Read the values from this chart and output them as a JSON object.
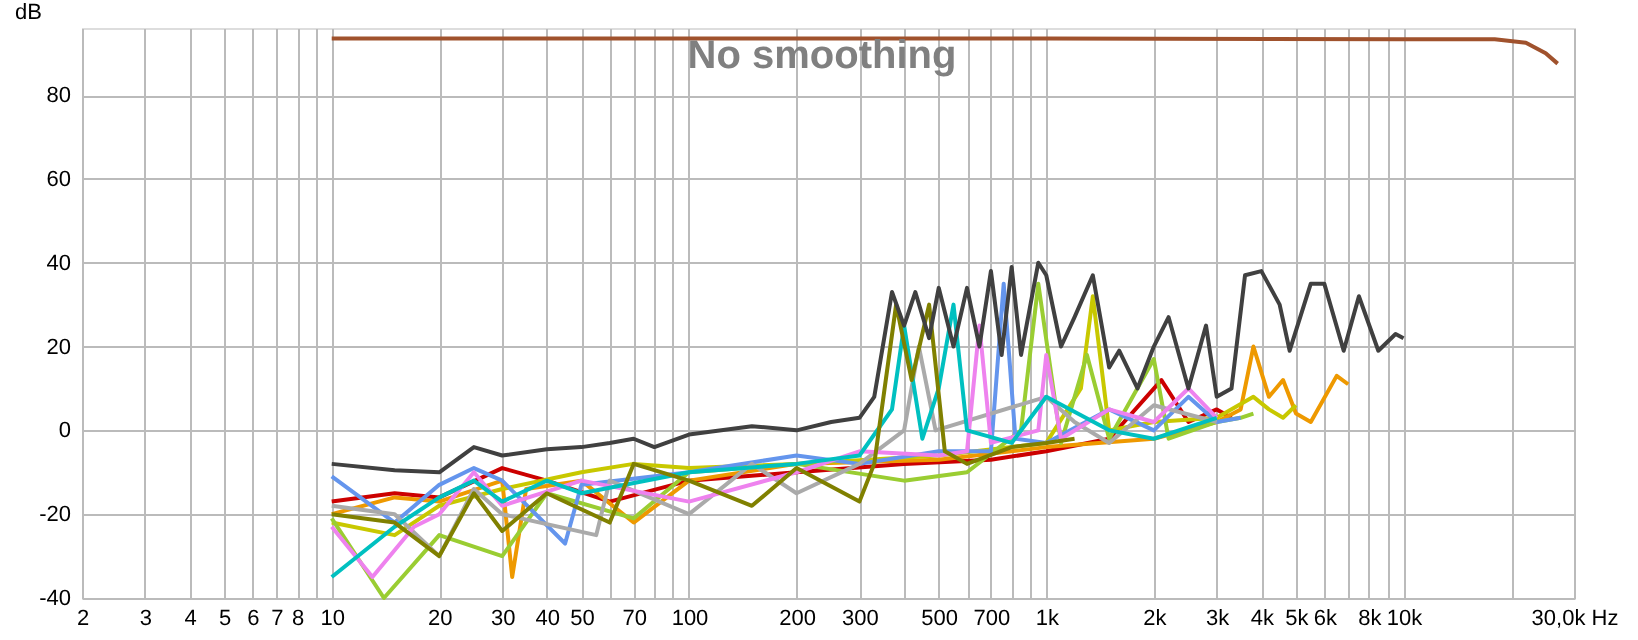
{
  "chart_data": {
    "type": "line",
    "ylabel": "dB",
    "annotations": [
      "No smoothing"
    ],
    "xlim": [
      2,
      30000
    ],
    "ylim": [
      -40,
      96
    ],
    "log": "x",
    "grid": true,
    "line_style": "solid",
    "marker": "none",
    "xticks": [
      2,
      3,
      4,
      5,
      6,
      7,
      8,
      {
        "value": 9,
        "label": null
      },
      10,
      20,
      30,
      40,
      50,
      {
        "value": 60,
        "label": null
      },
      70,
      {
        "value": 80,
        "label": null
      },
      {
        "value": 90,
        "label": null
      },
      100,
      200,
      300,
      {
        "value": 400,
        "label": null
      },
      500,
      {
        "value": 600,
        "label": null
      },
      700,
      {
        "value": 800,
        "label": null
      },
      {
        "value": 900,
        "label": null
      },
      {
        "value": 1000,
        "label": "1k"
      },
      {
        "value": 2000,
        "label": "2k"
      },
      {
        "value": 3000,
        "label": "3k"
      },
      {
        "value": 4000,
        "label": "4k"
      },
      {
        "value": 5000,
        "label": "5k"
      },
      {
        "value": 6000,
        "label": "6k"
      },
      {
        "value": 7000,
        "label": null
      },
      {
        "value": 8000,
        "label": "8k"
      },
      {
        "value": 9000,
        "label": null
      },
      {
        "value": 10000,
        "label": "10k"
      },
      {
        "value": 20000,
        "label": null
      },
      {
        "value": 30000,
        "label": "30,0k Hz"
      }
    ],
    "yticks": [
      -40,
      -20,
      0,
      20,
      40,
      60,
      80
    ],
    "series": [
      {
        "color": "#a0522d",
        "x": [
          10,
          1000,
          10000,
          18000,
          22000,
          25000,
          27000
        ],
        "values": [
          93.5,
          93.5,
          93.3,
          93.3,
          92.5,
          90,
          87.5
        ]
      },
      {
        "color": "#cc0000",
        "x": [
          10,
          15,
          20,
          30,
          40,
          60,
          100,
          200,
          400,
          700,
          1000,
          1500,
          2100,
          2500,
          3000,
          3300
        ],
        "values": [
          -17,
          -15,
          -16,
          -9,
          -12,
          -17,
          -12,
          -10,
          -8,
          -7,
          -5,
          -2,
          12,
          2,
          5,
          3
        ]
      },
      {
        "color": "#ee9900",
        "x": [
          10,
          15,
          20,
          30,
          32,
          35,
          50,
          70,
          100,
          200,
          500,
          1000,
          2000,
          3000,
          3500,
          3800,
          4200,
          4600,
          5000,
          5500,
          6500,
          7000
        ],
        "values": [
          -20,
          -16,
          -17,
          -12,
          -35,
          -14,
          -12,
          -22,
          -12,
          -8,
          -7,
          -4,
          -2,
          2,
          5,
          20,
          8,
          12,
          4,
          2,
          13,
          11
        ]
      },
      {
        "color": "#c8c800",
        "x": [
          10,
          15,
          20,
          30,
          50,
          70,
          100,
          200,
          500,
          1000,
          1250,
          1350,
          1500,
          2000,
          3000,
          3800,
          4200,
          4600,
          5000
        ],
        "values": [
          -22,
          -25,
          -18,
          -14,
          -10,
          -8,
          -9,
          -8,
          -6,
          -3,
          10,
          32,
          0,
          2,
          3,
          8,
          5,
          3,
          6
        ]
      },
      {
        "color": "#9acd32",
        "x": [
          10,
          14,
          20,
          30,
          40,
          70,
          100,
          200,
          400,
          600,
          850,
          950,
          1100,
          1300,
          1500,
          2000,
          2200,
          3000,
          3500,
          3800
        ],
        "values": [
          -21,
          -40,
          -25,
          -30,
          -15,
          -21,
          -10,
          -8,
          -12,
          -10,
          0,
          35,
          -3,
          18,
          -2,
          17,
          -2,
          2,
          3,
          4
        ]
      },
      {
        "color": "#6495ed",
        "x": [
          10,
          15,
          20,
          25,
          30,
          45,
          50,
          100,
          200,
          300,
          500,
          700,
          760,
          820,
          1000,
          1500,
          2000,
          2500,
          3000,
          3500
        ],
        "values": [
          -11,
          -22,
          -13,
          -9,
          -12,
          -27,
          -13,
          -10,
          -6,
          -8,
          -5,
          -5,
          35,
          -2,
          -3,
          5,
          0,
          8,
          2,
          3
        ]
      },
      {
        "color": "#aaaaaa",
        "x": [
          10,
          15,
          20,
          25,
          30,
          55,
          60,
          100,
          150,
          200,
          300,
          400,
          440,
          490,
          1000,
          1200,
          1500,
          2000,
          3000
        ],
        "values": [
          -18,
          -20,
          -30,
          -14,
          -20,
          -25,
          -12,
          -20,
          -8,
          -15,
          -8,
          0,
          20,
          0,
          8,
          2,
          -3,
          6,
          2
        ]
      },
      {
        "color": "#ee82ee",
        "x": [
          10,
          13,
          17,
          20,
          25,
          30,
          50,
          100,
          200,
          300,
          500,
          600,
          650,
          700,
          950,
          1000,
          1100,
          1500,
          2000,
          2500,
          3000
        ],
        "values": [
          -23,
          -35,
          -23,
          -20,
          -10,
          -18,
          -12,
          -17,
          -10,
          -5,
          -6,
          -5,
          25,
          -3,
          0,
          18,
          -2,
          5,
          2,
          10,
          3
        ]
      },
      {
        "color": "#00c0c0",
        "x": [
          10,
          15,
          20,
          25,
          30,
          40,
          50,
          100,
          200,
          300,
          370,
          400,
          450,
          500,
          550,
          600,
          800,
          1000,
          1500,
          2000,
          3000
        ],
        "values": [
          -35,
          -23,
          -16,
          -12,
          -17,
          -12,
          -15,
          -10,
          -8,
          -6,
          5,
          25,
          -2,
          10,
          30,
          0,
          -3,
          8,
          0,
          -2,
          3
        ]
      },
      {
        "color": "#808000",
        "x": [
          10,
          15,
          20,
          25,
          30,
          40,
          60,
          70,
          100,
          150,
          200,
          300,
          330,
          380,
          420,
          470,
          520,
          600,
          800,
          1000,
          1200
        ],
        "values": [
          -20,
          -22,
          -30,
          -15,
          -24,
          -15,
          -22,
          -8,
          -12,
          -18,
          -9,
          -17,
          -8,
          30,
          12,
          30,
          -5,
          -8,
          -4,
          -3,
          -2
        ]
      },
      {
        "color": "#404040",
        "x": [
          10,
          15,
          20,
          25,
          30,
          40,
          50,
          60,
          70,
          80,
          100,
          150,
          200,
          250,
          300,
          330,
          370,
          400,
          430,
          470,
          500,
          550,
          600,
          650,
          700,
          750,
          800,
          850,
          950,
          1000,
          1100,
          1200,
          1350,
          1500,
          1600,
          1800,
          2000,
          2200,
          2500,
          2800,
          3000,
          3300,
          3600,
          4000,
          4500,
          4800,
          5500,
          6000,
          6800,
          7500,
          8500,
          9500,
          10000
        ],
        "values": [
          -8,
          -9.5,
          -10,
          -4,
          -6,
          -4.5,
          -4,
          -3,
          -2,
          -4,
          -1,
          1,
          0,
          2,
          3,
          8,
          33,
          25,
          33,
          22,
          34,
          20,
          34,
          20,
          38,
          18,
          39,
          18,
          40,
          37,
          20,
          27,
          37,
          15,
          19,
          10,
          20,
          27,
          10,
          25,
          8,
          10,
          37,
          38,
          30,
          19,
          35,
          35,
          19,
          32,
          19,
          23,
          22
        ]
      }
    ]
  }
}
